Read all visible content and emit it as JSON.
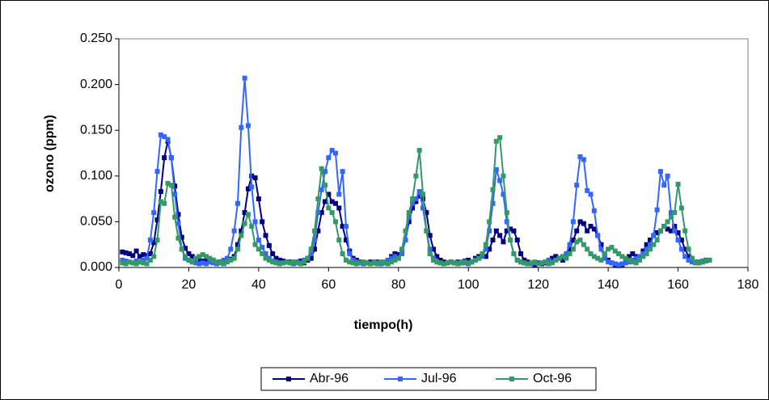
{
  "chart_data": {
    "type": "line",
    "xlabel": "tiempo(h)",
    "ylabel": "ozono (ppm)",
    "x": [
      1,
      2,
      3,
      4,
      5,
      6,
      7,
      8,
      9,
      10,
      11,
      12,
      13,
      14,
      15,
      16,
      17,
      18,
      19,
      20,
      21,
      22,
      23,
      24,
      25,
      26,
      27,
      28,
      29,
      30,
      31,
      32,
      33,
      34,
      35,
      36,
      37,
      38,
      39,
      40,
      41,
      42,
      43,
      44,
      45,
      46,
      47,
      48,
      49,
      50,
      51,
      52,
      53,
      54,
      55,
      56,
      57,
      58,
      59,
      60,
      61,
      62,
      63,
      64,
      65,
      66,
      67,
      68,
      69,
      70,
      71,
      72,
      73,
      74,
      75,
      76,
      77,
      78,
      79,
      80,
      81,
      82,
      83,
      84,
      85,
      86,
      87,
      88,
      89,
      90,
      91,
      92,
      93,
      94,
      95,
      96,
      97,
      98,
      99,
      100,
      101,
      102,
      103,
      104,
      105,
      106,
      107,
      108,
      109,
      110,
      111,
      112,
      113,
      114,
      115,
      116,
      117,
      118,
      119,
      120,
      121,
      122,
      123,
      124,
      125,
      126,
      127,
      128,
      129,
      130,
      131,
      132,
      133,
      134,
      135,
      136,
      137,
      138,
      139,
      140,
      141,
      142,
      143,
      144,
      145,
      146,
      147,
      148,
      149,
      150,
      151,
      152,
      153,
      154,
      155,
      156,
      157,
      158,
      159,
      160,
      161,
      162,
      163,
      164,
      165,
      166,
      167,
      168,
      169
    ],
    "series": [
      {
        "name": "Abr-96",
        "color": "#000080",
        "values": [
          0.017,
          0.016,
          0.015,
          0.013,
          0.018,
          0.012,
          0.014,
          0.013,
          0.015,
          0.027,
          0.052,
          0.083,
          0.12,
          0.138,
          0.12,
          0.089,
          0.058,
          0.033,
          0.021,
          0.015,
          0.012,
          0.01,
          0.008,
          0.007,
          0.007,
          0.006,
          0.008,
          0.005,
          0.006,
          0.004,
          0.008,
          0.009,
          0.012,
          0.025,
          0.04,
          0.06,
          0.086,
          0.1,
          0.098,
          0.075,
          0.05,
          0.035,
          0.024,
          0.015,
          0.01,
          0.008,
          0.007,
          0.006,
          0.006,
          0.005,
          0.006,
          0.007,
          0.005,
          0.008,
          0.01,
          0.02,
          0.04,
          0.06,
          0.072,
          0.08,
          0.072,
          0.07,
          0.065,
          0.045,
          0.03,
          0.018,
          0.01,
          0.008,
          0.006,
          0.005,
          0.005,
          0.006,
          0.005,
          0.006,
          0.004,
          0.005,
          0.008,
          0.012,
          0.015,
          0.014,
          0.018,
          0.03,
          0.05,
          0.065,
          0.072,
          0.078,
          0.075,
          0.06,
          0.035,
          0.02,
          0.012,
          0.008,
          0.006,
          0.005,
          0.006,
          0.005,
          0.006,
          0.005,
          0.007,
          0.008,
          0.006,
          0.01,
          0.012,
          0.014,
          0.012,
          0.02,
          0.03,
          0.04,
          0.035,
          0.028,
          0.04,
          0.042,
          0.04,
          0.03,
          0.015,
          0.008,
          0.006,
          0.004,
          0.003,
          0.005,
          0.004,
          0.005,
          0.008,
          0.01,
          0.012,
          0.01,
          0.008,
          0.012,
          0.02,
          0.03,
          0.04,
          0.05,
          0.048,
          0.04,
          0.045,
          0.042,
          0.035,
          0.025,
          0.012,
          0.008,
          0.005,
          0.003,
          0.002,
          0.003,
          0.008,
          0.012,
          0.015,
          0.012,
          0.01,
          0.018,
          0.025,
          0.03,
          0.035,
          0.038,
          0.04,
          0.045,
          0.042,
          0.04,
          0.045,
          0.038,
          0.03,
          0.02,
          0.012,
          0.008,
          0.006,
          0.005,
          0.006,
          0.008,
          0.008
        ]
      },
      {
        "name": "Jul-96",
        "color": "#3366ff",
        "values": [
          0.008,
          0.007,
          0.006,
          0.005,
          0.007,
          0.006,
          0.008,
          0.01,
          0.03,
          0.06,
          0.105,
          0.145,
          0.143,
          0.14,
          0.12,
          0.08,
          0.048,
          0.02,
          0.01,
          0.008,
          0.006,
          0.005,
          0.004,
          0.005,
          0.004,
          0.006,
          0.005,
          0.004,
          0.006,
          0.008,
          0.01,
          0.02,
          0.04,
          0.07,
          0.153,
          0.207,
          0.155,
          0.088,
          0.05,
          0.03,
          0.022,
          0.015,
          0.01,
          0.007,
          0.006,
          0.005,
          0.005,
          0.006,
          0.005,
          0.004,
          0.006,
          0.005,
          0.008,
          0.01,
          0.015,
          0.03,
          0.06,
          0.085,
          0.105,
          0.12,
          0.128,
          0.125,
          0.08,
          0.105,
          0.045,
          0.015,
          0.008,
          0.006,
          0.005,
          0.004,
          0.005,
          0.004,
          0.006,
          0.005,
          0.004,
          0.006,
          0.008,
          0.01,
          0.012,
          0.01,
          0.015,
          0.03,
          0.055,
          0.07,
          0.075,
          0.083,
          0.065,
          0.04,
          0.02,
          0.01,
          0.006,
          0.005,
          0.004,
          0.005,
          0.006,
          0.005,
          0.005,
          0.006,
          0.005,
          0.004,
          0.006,
          0.008,
          0.01,
          0.012,
          0.02,
          0.04,
          0.07,
          0.107,
          0.095,
          0.08,
          0.05,
          0.03,
          0.015,
          0.008,
          0.006,
          0.005,
          0.004,
          0.004,
          0.005,
          0.004,
          0.005,
          0.006,
          0.008,
          0.006,
          0.008,
          0.01,
          0.012,
          0.015,
          0.025,
          0.05,
          0.09,
          0.121,
          0.118,
          0.084,
          0.08,
          0.062,
          0.035,
          0.02,
          0.01,
          0.006,
          0.005,
          0.004,
          0.003,
          0.004,
          0.005,
          0.006,
          0.008,
          0.01,
          0.012,
          0.015,
          0.02,
          0.025,
          0.035,
          0.063,
          0.105,
          0.09,
          0.1,
          0.06,
          0.04,
          0.03,
          0.02,
          0.012,
          0.008,
          0.006,
          0.005,
          0.006,
          0.007,
          0.008,
          0.008
        ]
      },
      {
        "name": "Oct-96",
        "color": "#339966",
        "values": [
          0.005,
          0.004,
          0.006,
          0.005,
          0.004,
          0.006,
          0.005,
          0.004,
          0.008,
          0.012,
          0.03,
          0.072,
          0.07,
          0.092,
          0.09,
          0.055,
          0.032,
          0.02,
          0.012,
          0.008,
          0.006,
          0.01,
          0.012,
          0.014,
          0.012,
          0.01,
          0.008,
          0.006,
          0.005,
          0.004,
          0.006,
          0.008,
          0.01,
          0.02,
          0.035,
          0.048,
          0.058,
          0.045,
          0.025,
          0.02,
          0.015,
          0.01,
          0.008,
          0.006,
          0.005,
          0.004,
          0.005,
          0.006,
          0.005,
          0.006,
          0.005,
          0.004,
          0.006,
          0.01,
          0.02,
          0.04,
          0.075,
          0.108,
          0.09,
          0.065,
          0.06,
          0.05,
          0.03,
          0.015,
          0.008,
          0.006,
          0.005,
          0.004,
          0.005,
          0.006,
          0.005,
          0.004,
          0.005,
          0.004,
          0.006,
          0.005,
          0.004,
          0.006,
          0.008,
          0.01,
          0.02,
          0.04,
          0.06,
          0.075,
          0.1,
          0.128,
          0.08,
          0.04,
          0.015,
          0.008,
          0.006,
          0.005,
          0.004,
          0.005,
          0.006,
          0.005,
          0.004,
          0.005,
          0.006,
          0.005,
          0.006,
          0.008,
          0.01,
          0.015,
          0.025,
          0.05,
          0.085,
          0.138,
          0.142,
          0.1,
          0.06,
          0.03,
          0.015,
          0.008,
          0.006,
          0.005,
          0.004,
          0.005,
          0.006,
          0.004,
          0.005,
          0.006,
          0.004,
          0.005,
          0.008,
          0.01,
          0.012,
          0.01,
          0.015,
          0.02,
          0.028,
          0.03,
          0.025,
          0.02,
          0.015,
          0.012,
          0.01,
          0.008,
          0.015,
          0.02,
          0.022,
          0.018,
          0.015,
          0.012,
          0.01,
          0.008,
          0.006,
          0.005,
          0.008,
          0.012,
          0.015,
          0.02,
          0.025,
          0.03,
          0.04,
          0.045,
          0.05,
          0.055,
          0.06,
          0.091,
          0.065,
          0.04,
          0.02,
          0.01,
          0.006,
          0.005,
          0.006,
          0.007,
          0.008
        ]
      }
    ],
    "xlim": [
      0,
      180
    ],
    "xticks": [
      0,
      20,
      40,
      60,
      80,
      100,
      120,
      140,
      160,
      180
    ],
    "ylim": [
      0,
      0.25
    ],
    "yticks": [
      {
        "value": 0,
        "label": "0.000"
      },
      {
        "value": 0.05,
        "label": "0.050"
      },
      {
        "value": 0.1,
        "label": "0.100"
      },
      {
        "value": 0.15,
        "label": "0.150"
      },
      {
        "value": 0.2,
        "label": "0.200"
      },
      {
        "value": 0.25,
        "label": "0.250"
      }
    ],
    "legend": "bottom"
  }
}
